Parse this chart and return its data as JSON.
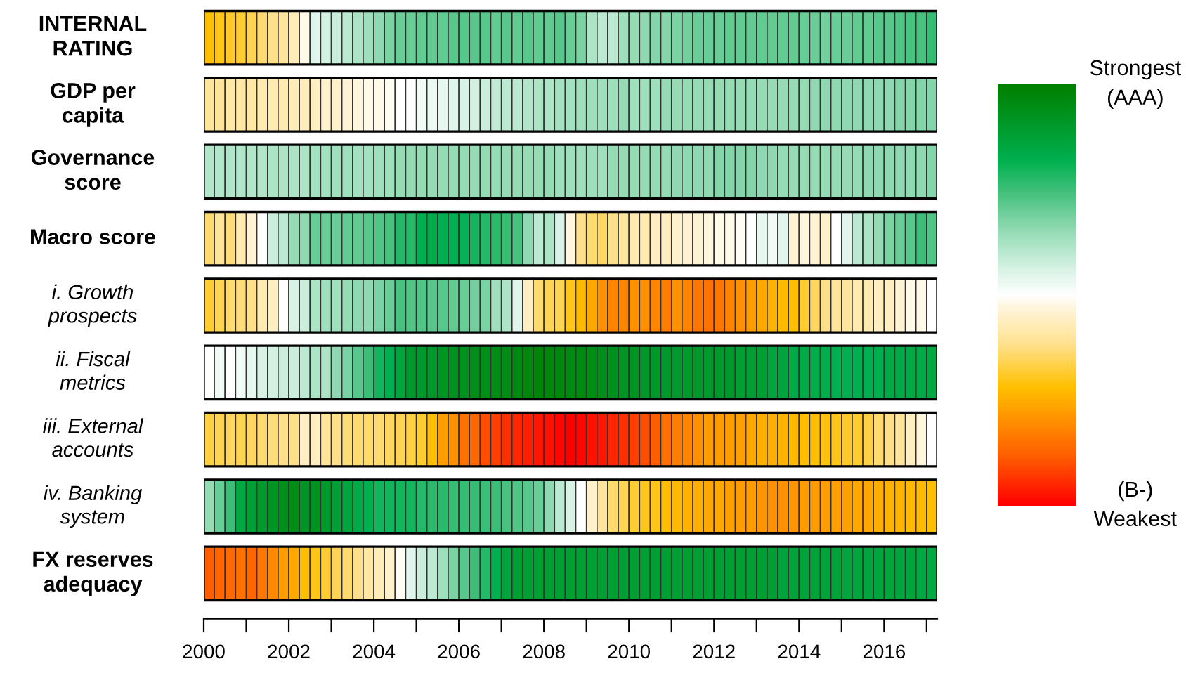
{
  "chart_data": {
    "type": "heatmap",
    "x": [
      2000.125,
      2000.375,
      2000.625,
      2000.875,
      2001.125,
      2001.375,
      2001.625,
      2001.875,
      2002.125,
      2002.375,
      2002.625,
      2002.875,
      2003.125,
      2003.375,
      2003.625,
      2003.875,
      2004.125,
      2004.375,
      2004.625,
      2004.875,
      2005.125,
      2005.375,
      2005.625,
      2005.875,
      2006.125,
      2006.375,
      2006.625,
      2006.875,
      2007.125,
      2007.375,
      2007.625,
      2007.875,
      2008.125,
      2008.375,
      2008.625,
      2008.875,
      2009.125,
      2009.375,
      2009.625,
      2009.875,
      2010.125,
      2010.375,
      2010.625,
      2010.875,
      2011.125,
      2011.375,
      2011.625,
      2011.875,
      2012.125,
      2012.375,
      2012.625,
      2012.875,
      2013.125,
      2013.375,
      2013.625,
      2013.875,
      2014.125,
      2014.375,
      2014.625,
      2014.875,
      2015.125,
      2015.375,
      2015.625,
      2015.875,
      2016.125,
      2016.375,
      2016.625,
      2016.875,
      2017.125
    ],
    "xlim": [
      2000,
      2017.25
    ],
    "xticks": [
      2000,
      {
        "value": 2001,
        "label": null
      },
      2002,
      {
        "value": 2003,
        "label": null
      },
      2004,
      {
        "value": 2005,
        "label": null
      },
      2006,
      {
        "value": 2007,
        "label": null
      },
      2008,
      {
        "value": 2009,
        "label": null
      },
      2010,
      {
        "value": 2011,
        "label": null
      },
      2012,
      {
        "value": 2013,
        "label": null
      },
      2014,
      {
        "value": 2015,
        "label": null
      },
      2016,
      {
        "value": 2017,
        "label": null
      }
    ],
    "y_categories": [
      "INTERNAL\nRATING",
      "GDP per\ncapita",
      "Governance\nscore",
      "Macro score",
      "i. Growth\nprospects",
      "ii. Fiscal\nmetrics",
      "iii. External\naccounts",
      "iv. Banking\nsystem",
      "FX reserves\nadequacy"
    ],
    "cells": [
      [
        0.28,
        0.3,
        0.31,
        0.32,
        0.34,
        0.36,
        0.38,
        0.4,
        0.43,
        0.48,
        0.55,
        0.57,
        0.58,
        0.6,
        0.62,
        0.64,
        0.66,
        0.68,
        0.7,
        0.7,
        0.71,
        0.71,
        0.71,
        0.72,
        0.72,
        0.72,
        0.72,
        0.71,
        0.72,
        0.71,
        0.72,
        0.71,
        0.71,
        0.72,
        0.7,
        0.68,
        0.62,
        0.6,
        0.6,
        0.64,
        0.65,
        0.66,
        0.67,
        0.67,
        0.68,
        0.69,
        0.7,
        0.7,
        0.7,
        0.71,
        0.71,
        0.71,
        0.71,
        0.71,
        0.71,
        0.71,
        0.7,
        0.7,
        0.69,
        0.7,
        0.7,
        0.71,
        0.71,
        0.72,
        0.72,
        0.73,
        0.74,
        0.74,
        0.76
      ],
      [
        0.4,
        0.4,
        0.41,
        0.41,
        0.41,
        0.42,
        0.42,
        0.42,
        0.43,
        0.43,
        0.44,
        0.45,
        0.45,
        0.46,
        0.47,
        0.48,
        0.48,
        0.49,
        0.5,
        0.5,
        0.52,
        0.53,
        0.54,
        0.55,
        0.56,
        0.57,
        0.58,
        0.59,
        0.6,
        0.6,
        0.61,
        0.62,
        0.62,
        0.63,
        0.63,
        0.64,
        0.64,
        0.64,
        0.64,
        0.65,
        0.64,
        0.64,
        0.64,
        0.65,
        0.65,
        0.65,
        0.65,
        0.65,
        0.65,
        0.65,
        0.65,
        0.65,
        0.65,
        0.65,
        0.65,
        0.65,
        0.65,
        0.66,
        0.66,
        0.66,
        0.66,
        0.66,
        0.66,
        0.66,
        0.66,
        0.67,
        0.67,
        0.67,
        0.67
      ],
      [
        0.61,
        0.61,
        0.61,
        0.61,
        0.61,
        0.61,
        0.62,
        0.62,
        0.62,
        0.62,
        0.63,
        0.63,
        0.64,
        0.64,
        0.63,
        0.63,
        0.64,
        0.64,
        0.65,
        0.65,
        0.65,
        0.65,
        0.65,
        0.65,
        0.65,
        0.65,
        0.65,
        0.65,
        0.65,
        0.65,
        0.65,
        0.65,
        0.65,
        0.64,
        0.64,
        0.64,
        0.64,
        0.64,
        0.65,
        0.65,
        0.65,
        0.65,
        0.65,
        0.65,
        0.66,
        0.66,
        0.66,
        0.66,
        0.67,
        0.67,
        0.67,
        0.67,
        0.66,
        0.66,
        0.65,
        0.65,
        0.65,
        0.65,
        0.65,
        0.65,
        0.65,
        0.65,
        0.66,
        0.66,
        0.66,
        0.66,
        0.66,
        0.66,
        0.67
      ],
      [
        0.36,
        0.4,
        0.37,
        0.42,
        0.46,
        0.5,
        0.58,
        0.6,
        0.65,
        0.66,
        0.7,
        0.7,
        0.7,
        0.71,
        0.71,
        0.72,
        0.73,
        0.74,
        0.78,
        0.78,
        0.82,
        0.83,
        0.82,
        0.82,
        0.81,
        0.8,
        0.78,
        0.77,
        0.76,
        0.74,
        0.66,
        0.6,
        0.62,
        0.56,
        0.47,
        0.38,
        0.36,
        0.35,
        0.38,
        0.4,
        0.42,
        0.42,
        0.44,
        0.44,
        0.45,
        0.46,
        0.46,
        0.47,
        0.48,
        0.48,
        0.49,
        0.5,
        0.54,
        0.52,
        0.55,
        0.46,
        0.47,
        0.46,
        0.45,
        0.5,
        0.55,
        0.6,
        0.62,
        0.65,
        0.68,
        0.7,
        0.72,
        0.75,
        0.73
      ],
      [
        0.32,
        0.34,
        0.36,
        0.37,
        0.38,
        0.42,
        0.44,
        0.5,
        0.56,
        0.58,
        0.62,
        0.64,
        0.64,
        0.65,
        0.66,
        0.66,
        0.68,
        0.7,
        0.74,
        0.73,
        0.73,
        0.72,
        0.72,
        0.71,
        0.7,
        0.69,
        0.68,
        0.64,
        0.62,
        0.55,
        0.44,
        0.36,
        0.34,
        0.34,
        0.3,
        0.27,
        0.24,
        0.2,
        0.18,
        0.18,
        0.2,
        0.2,
        0.18,
        0.17,
        0.2,
        0.18,
        0.16,
        0.15,
        0.16,
        0.18,
        0.2,
        0.22,
        0.24,
        0.26,
        0.27,
        0.28,
        0.32,
        0.35,
        0.38,
        0.4,
        0.4,
        0.42,
        0.42,
        0.44,
        0.44,
        0.46,
        0.48,
        0.48,
        0.5
      ],
      [
        0.5,
        0.52,
        0.5,
        0.52,
        0.54,
        0.56,
        0.57,
        0.58,
        0.58,
        0.6,
        0.62,
        0.62,
        0.66,
        0.68,
        0.72,
        0.75,
        0.8,
        0.82,
        0.86,
        0.9,
        0.9,
        0.91,
        0.92,
        0.93,
        0.93,
        0.94,
        0.94,
        0.95,
        0.95,
        0.96,
        0.97,
        0.98,
        0.97,
        0.97,
        0.96,
        0.96,
        0.95,
        0.94,
        0.93,
        0.92,
        0.92,
        0.91,
        0.91,
        0.9,
        0.9,
        0.9,
        0.9,
        0.9,
        0.9,
        0.9,
        0.88,
        0.88,
        0.88,
        0.86,
        0.86,
        0.84,
        0.84,
        0.83,
        0.83,
        0.82,
        0.82,
        0.82,
        0.82,
        0.82,
        0.84,
        0.84,
        0.84,
        0.84,
        0.85
      ],
      [
        0.33,
        0.34,
        0.35,
        0.34,
        0.35,
        0.36,
        0.37,
        0.38,
        0.38,
        0.44,
        0.44,
        0.4,
        0.38,
        0.37,
        0.36,
        0.36,
        0.36,
        0.35,
        0.34,
        0.33,
        0.32,
        0.28,
        0.22,
        0.2,
        0.15,
        0.13,
        0.1,
        0.08,
        0.06,
        0.05,
        0.04,
        0.03,
        0.02,
        0.01,
        0.0,
        0.01,
        0.02,
        0.03,
        0.05,
        0.06,
        0.08,
        0.1,
        0.12,
        0.15,
        0.17,
        0.18,
        0.2,
        0.22,
        0.22,
        0.22,
        0.23,
        0.24,
        0.25,
        0.25,
        0.26,
        0.27,
        0.28,
        0.28,
        0.29,
        0.3,
        0.31,
        0.32,
        0.33,
        0.36,
        0.38,
        0.4,
        0.44,
        0.47,
        0.5
      ],
      [
        0.65,
        0.7,
        0.75,
        0.85,
        0.88,
        0.9,
        0.92,
        0.94,
        0.95,
        0.92,
        0.93,
        0.9,
        0.88,
        0.86,
        0.84,
        0.82,
        0.8,
        0.8,
        0.8,
        0.8,
        0.78,
        0.77,
        0.77,
        0.76,
        0.76,
        0.76,
        0.75,
        0.75,
        0.74,
        0.73,
        0.72,
        0.7,
        0.66,
        0.6,
        0.56,
        0.5,
        0.45,
        0.4,
        0.36,
        0.34,
        0.32,
        0.3,
        0.3,
        0.28,
        0.27,
        0.26,
        0.25,
        0.24,
        0.24,
        0.23,
        0.22,
        0.22,
        0.21,
        0.2,
        0.2,
        0.21,
        0.22,
        0.22,
        0.22,
        0.23,
        0.23,
        0.24,
        0.24,
        0.25,
        0.26,
        0.26,
        0.27,
        0.27,
        0.28
      ],
      [
        0.12,
        0.13,
        0.14,
        0.15,
        0.13,
        0.16,
        0.19,
        0.22,
        0.24,
        0.28,
        0.3,
        0.32,
        0.34,
        0.36,
        0.38,
        0.41,
        0.43,
        0.45,
        0.49,
        0.55,
        0.58,
        0.6,
        0.64,
        0.68,
        0.72,
        0.75,
        0.78,
        0.82,
        0.86,
        0.88,
        0.88,
        0.88,
        0.88,
        0.88,
        0.88,
        0.88,
        0.88,
        0.88,
        0.88,
        0.88,
        0.88,
        0.88,
        0.88,
        0.88,
        0.88,
        0.88,
        0.88,
        0.88,
        0.88,
        0.88,
        0.88,
        0.88,
        0.88,
        0.88,
        0.87,
        0.87,
        0.87,
        0.87,
        0.87,
        0.87,
        0.86,
        0.86,
        0.86,
        0.86,
        0.86,
        0.86,
        0.86,
        0.85,
        0.85
      ]
    ],
    "clim": [
      0,
      1
    ],
    "cticks": [
      {
        "value": 0,
        "label": "(B-)\nWeakest"
      },
      {
        "value": 1,
        "label": "Strongest\n(AAA)"
      }
    ]
  }
}
